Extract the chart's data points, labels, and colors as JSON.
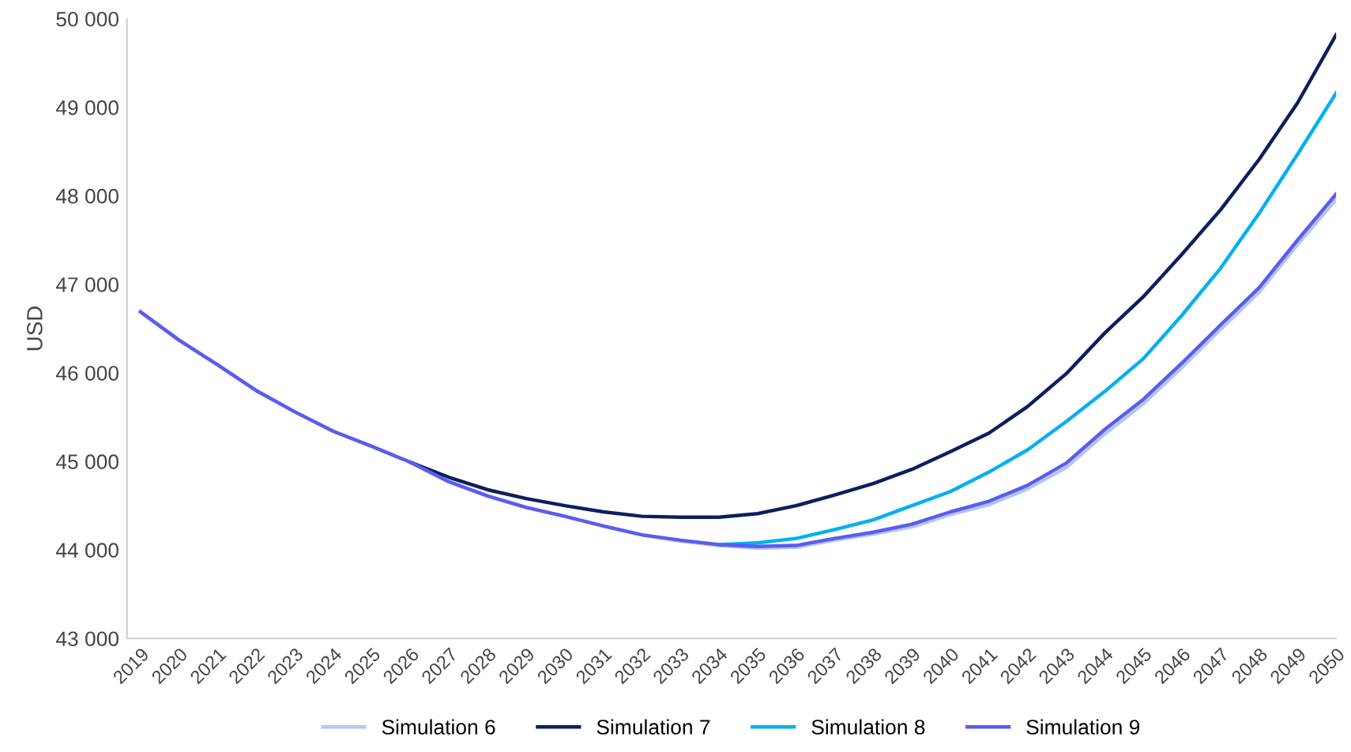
{
  "chart_data": {
    "type": "line",
    "ylabel": "USD",
    "categories": [
      "2019",
      "2020",
      "2021",
      "2022",
      "2023",
      "2024",
      "2025",
      "2026",
      "2027",
      "2028",
      "2029",
      "2030",
      "2031",
      "2032",
      "2033",
      "2034",
      "2035",
      "2036",
      "2037",
      "2038",
      "2039",
      "2040",
      "2041",
      "2042",
      "2043",
      "2044",
      "2045",
      "2046",
      "2047",
      "2048",
      "2049",
      "2050"
    ],
    "series": [
      {
        "name": "Simulation 6",
        "color": "#b4c6f2",
        "values": [
          46690,
          46370,
          46090,
          45800,
          45560,
          45340,
          45170,
          44990,
          44770,
          44610,
          44480,
          44380,
          44270,
          44170,
          44100,
          44050,
          44020,
          44030,
          44110,
          44180,
          44260,
          44400,
          44510,
          44690,
          44930,
          45310,
          45650,
          46060,
          46490,
          46910,
          47450,
          47960
        ]
      },
      {
        "name": "Simulation 7",
        "color": "#0c1f5e",
        "values": [
          null,
          null,
          null,
          null,
          null,
          null,
          null,
          44990,
          44820,
          44680,
          44580,
          44500,
          44430,
          44380,
          44370,
          44370,
          44410,
          44500,
          44620,
          44750,
          44910,
          45110,
          45320,
          45620,
          45990,
          46450,
          46860,
          47340,
          47840,
          48410,
          49050,
          49820
        ]
      },
      {
        "name": "Simulation 8",
        "color": "#00b0f0",
        "values": [
          null,
          null,
          null,
          null,
          null,
          null,
          null,
          null,
          null,
          null,
          null,
          null,
          null,
          null,
          null,
          44060,
          44080,
          44130,
          44230,
          44340,
          44500,
          44660,
          44880,
          45130,
          45450,
          45790,
          46160,
          46650,
          47180,
          47800,
          48470,
          49160
        ]
      },
      {
        "name": "Simulation 9",
        "color": "#5a5cf0",
        "values": [
          46690,
          46370,
          46090,
          45800,
          45560,
          45340,
          45170,
          44990,
          44770,
          44610,
          44480,
          44380,
          44270,
          44170,
          44110,
          44060,
          44040,
          44050,
          44130,
          44200,
          44290,
          44430,
          44550,
          44730,
          44980,
          45360,
          45700,
          46110,
          46540,
          46960,
          47500,
          48020
        ]
      }
    ],
    "ylim": [
      43000,
      50000
    ],
    "yticks": [
      {
        "value": 43000,
        "label": "43 000"
      },
      {
        "value": 44000,
        "label": "44 000"
      },
      {
        "value": 45000,
        "label": "45 000"
      },
      {
        "value": 46000,
        "label": "46 000"
      },
      {
        "value": 47000,
        "label": "47 000"
      },
      {
        "value": 48000,
        "label": "48 000"
      },
      {
        "value": 49000,
        "label": "49 000"
      },
      {
        "value": 50000,
        "label": "50 000"
      }
    ],
    "legend": "bottom",
    "marker": "none",
    "line_style": "solid"
  }
}
